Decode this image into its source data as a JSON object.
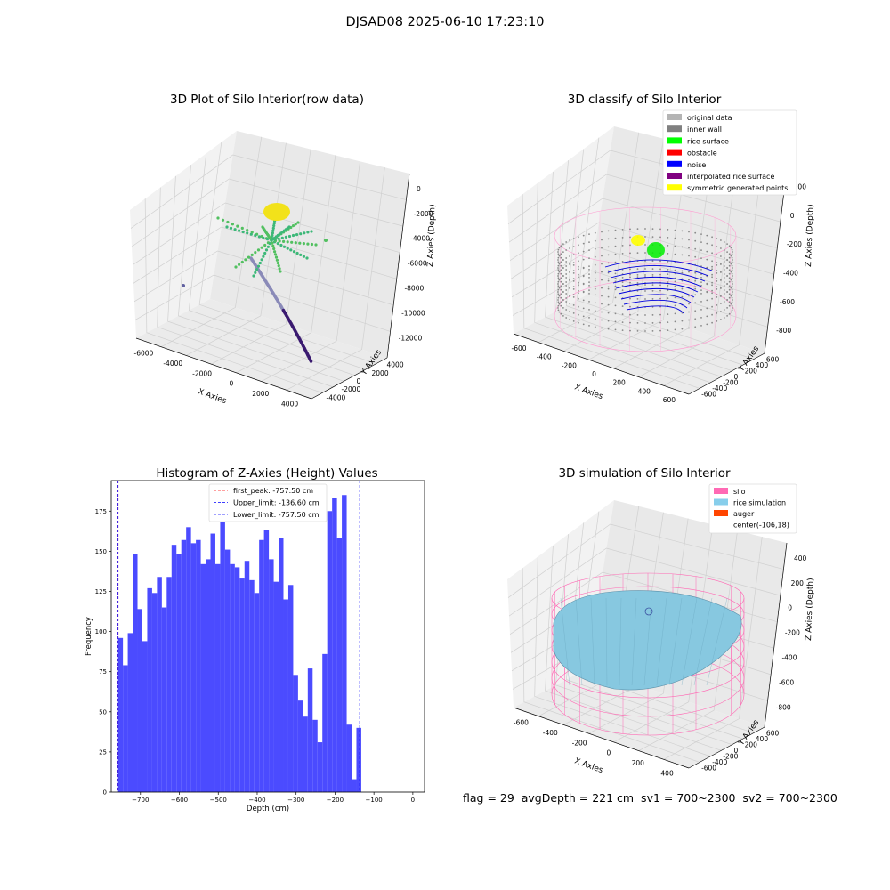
{
  "suptitle": "DJSAD08 2025-06-10 17:23:10",
  "footer": "flag = 29  avgDepth = 221 cm  sv1 = 700~2300  sv2 = 700~2300",
  "colors": {
    "hist_bar": "#4b4bff",
    "first_peak": "#ff0000",
    "limit_line": "#0000ff",
    "silo_wire": "#ff69b4",
    "rice_sim": "#87c8e0",
    "noise": "#0000dd",
    "rice_surface": "#00ee00",
    "symmetric": "#ffff00",
    "grey_wall": "#888888"
  },
  "chart_data": [
    {
      "type": "scatter",
      "title": "3D Plot of Silo Interior(row data)",
      "xlabel": "X Axies",
      "ylabel": "Y Axies",
      "zlabel": "Z Axies (Depth)",
      "xticks": [
        "-6000",
        "-4000",
        "-2000",
        "0",
        "2000",
        "4000"
      ],
      "yticks": [
        "-4000",
        "-2000",
        "0",
        "2000",
        "4000"
      ],
      "zticks": [
        "0",
        "-2000",
        "-4000",
        "-6000",
        "-8000",
        "-10000",
        "-12000"
      ]
    },
    {
      "type": "scatter",
      "title": "3D classify of Silo Interior",
      "xlabel": "X Axies",
      "ylabel": "Y Axies",
      "zlabel": "Z Axies (Depth)",
      "xticks": [
        "-600",
        "-400",
        "-200",
        "0",
        "200",
        "400",
        "600"
      ],
      "yticks": [
        "-600",
        "-400",
        "-200",
        "0",
        "200",
        "400",
        "600"
      ],
      "zticks": [
        "200",
        "0",
        "-200",
        "-400",
        "-600",
        "-800"
      ],
      "legend": [
        {
          "label": "original data",
          "color": "#b4b4b4"
        },
        {
          "label": "inner wall",
          "color": "#808080"
        },
        {
          "label": "rice surface",
          "color": "#00ff00"
        },
        {
          "label": "obstacle",
          "color": "#ff0000"
        },
        {
          "label": "noise",
          "color": "#0000ff"
        },
        {
          "label": "interpolated rice surface",
          "color": "#800080"
        },
        {
          "label": "symmetric generated points",
          "color": "#ffff00"
        }
      ]
    },
    {
      "type": "bar",
      "title": "Histogram of Z-Axies (Height) Values",
      "xlabel": "Depth (cm)",
      "ylabel": "Frequency",
      "xlim": [
        -775,
        30
      ],
      "ylim": [
        0,
        194
      ],
      "xticks": [
        -700,
        -600,
        -500,
        -400,
        -300,
        -200,
        -100,
        0
      ],
      "yticks": [
        0,
        25,
        50,
        75,
        100,
        125,
        150,
        175
      ],
      "bin_start": -757.5,
      "bin_width": 12.5,
      "values": [
        96,
        79,
        99,
        148,
        114,
        94,
        127,
        124,
        134,
        115,
        134,
        154,
        148,
        157,
        165,
        155,
        157,
        142,
        145,
        161,
        142,
        168,
        151,
        142,
        140,
        133,
        144,
        132,
        124,
        157,
        163,
        145,
        131,
        158,
        120,
        129,
        73,
        57,
        47,
        77,
        45,
        31,
        86,
        175,
        183,
        158,
        185,
        42,
        8,
        40
      ],
      "lines": [
        {
          "label": "first_peak: -757.50 cm",
          "x": -757.5,
          "color": "#ff0000"
        },
        {
          "label": "Upper_limit: -136.60 cm",
          "x": -136.6,
          "color": "#0000ff"
        },
        {
          "label": "Lower_limit: -757.50 cm",
          "x": -757.5,
          "color": "#0000ff"
        }
      ]
    },
    {
      "type": "scatter",
      "title": "3D simulation of Silo Interior",
      "xlabel": "X Axies",
      "ylabel": "Y Axies",
      "zlabel": "Z Axies (Depth)",
      "xticks": [
        "-600",
        "-400",
        "-200",
        "0",
        "200",
        "400"
      ],
      "yticks": [
        "-600",
        "-400",
        "-200",
        "0",
        "200",
        "400",
        "600"
      ],
      "zticks": [
        "400",
        "200",
        "0",
        "-200",
        "-400",
        "-600",
        "-800"
      ],
      "legend": [
        {
          "label": "silo",
          "color": "#ff69b4"
        },
        {
          "label": "rice simulation",
          "color": "#87ceeb"
        },
        {
          "label": "auger",
          "color": "#ff4500"
        },
        {
          "label": "center(-106,18)",
          "color": ""
        }
      ]
    }
  ]
}
